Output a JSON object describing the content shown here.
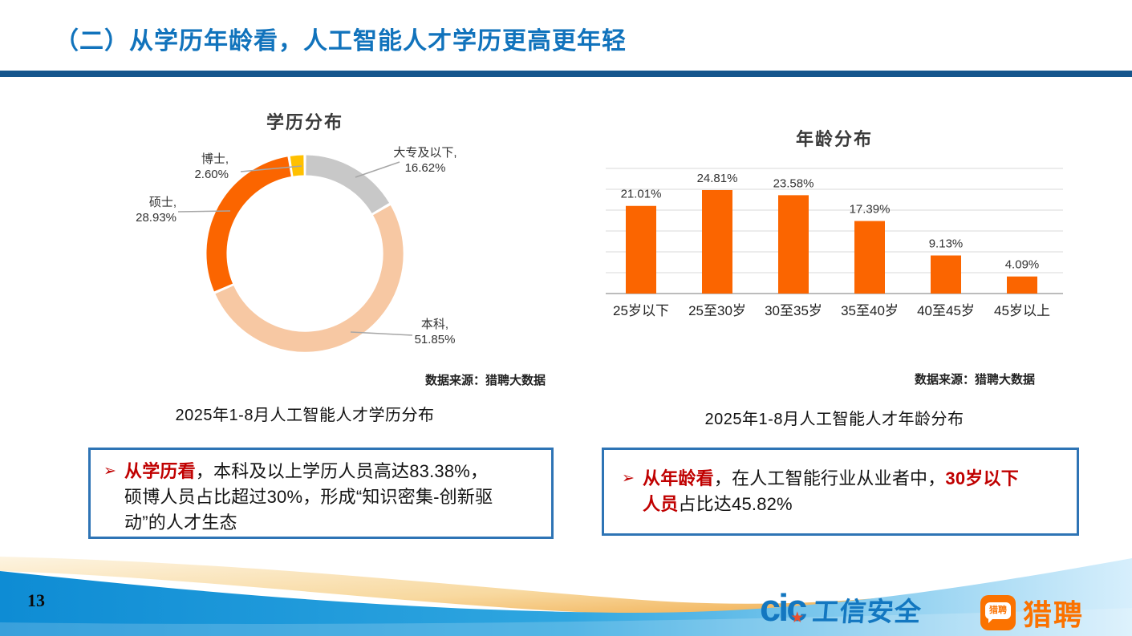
{
  "header": {
    "title": "（二）从学历年龄看，人工智能人才学历更高更年轻"
  },
  "chart_data": [
    {
      "type": "pie",
      "subtype": "donut",
      "title": "学历分布",
      "legend_position": "none",
      "labels_on_chart": true,
      "segments_clockwise_from_top": [
        {
          "label": "大专及以下",
          "value": 16.62,
          "color": "#C8C8C8"
        },
        {
          "label": "本科",
          "value": 51.85,
          "color": "#F7C8A3"
        },
        {
          "label": "硕士",
          "value": 28.93,
          "color": "#FB6500"
        },
        {
          "label": "博士",
          "value": 2.6,
          "color": "#FFC000"
        }
      ],
      "source": "数据来源：猎聘大数据",
      "caption": "2025年1-8月人工智能人才学历分布"
    },
    {
      "type": "bar",
      "title": "年龄分布",
      "categories": [
        "25岁以下",
        "25至30岁",
        "30至35岁",
        "35至40岁",
        "40至45岁",
        "45岁以上"
      ],
      "values": [
        21.01,
        24.81,
        23.58,
        17.39,
        9.13,
        4.09
      ],
      "value_labels": [
        "21.01%",
        "24.81%",
        "23.58%",
        "17.39%",
        "9.13%",
        "4.09%"
      ],
      "bar_color": "#FB6500",
      "ylim": [
        0,
        30
      ],
      "grid_step": 5,
      "grid": true,
      "y_tick_labels_visible": false,
      "source": "数据来源：猎聘大数据",
      "caption": "2025年1-8月人工智能人才年龄分布"
    }
  ],
  "notes": {
    "left": {
      "bullet": "➢",
      "segments": [
        {
          "text": "从学历看",
          "em": true
        },
        {
          "text": "，本科及以上学历人员高达83.38%，硕博人员占比超过30%，形成“知识密集-创新驱动”的人才生态",
          "em": false
        }
      ]
    },
    "right": {
      "bullet": "➢",
      "segments": [
        {
          "text": "从年龄看",
          "em": true
        },
        {
          "text": "，在人工智能行业从业者中，",
          "em": false
        },
        {
          "text": "30岁以下人员",
          "em": true
        },
        {
          "text": "占比达45.82%",
          "em": false
        }
      ]
    }
  },
  "footer": {
    "page_number": "13",
    "cic_text": "cic",
    "cic_star": "★",
    "cic_label": "工信安全",
    "liepin_badge": "猎聘",
    "liepin_label": "猎聘"
  },
  "colors": {
    "title_blue": "#1173BC",
    "divider_blue": "#15568D",
    "box_border_blue": "#2E74B5",
    "emphasis_red": "#C00000",
    "bar_orange": "#FB6500",
    "donut_yellow": "#FFC000",
    "donut_peach": "#F7C8A3",
    "donut_gray": "#C8C8C8",
    "footer_blue": "#1092D8",
    "footer_orange": "#EFA33C",
    "liepin_orange": "#FB7200"
  }
}
